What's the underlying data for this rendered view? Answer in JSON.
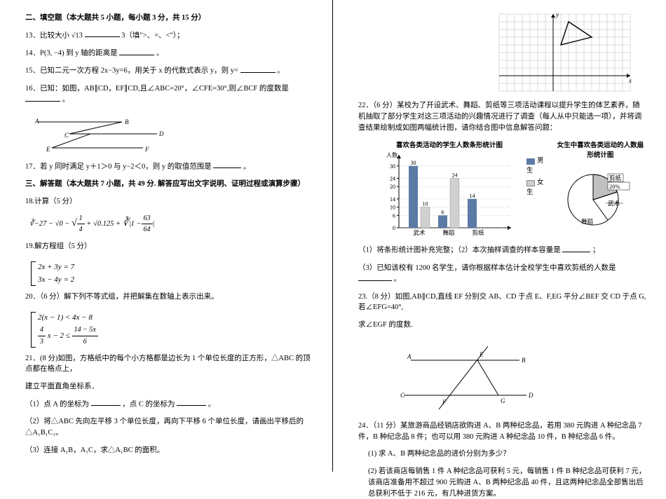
{
  "left": {
    "section2_title": "二、填空题（本大题共 5 小题，每小题 3 分，共 15 分）",
    "q13": "13．比较大小",
    "q13_a": "√13",
    "q13_b": "3（填\">、=、<\"）；",
    "q14": "14．P(3, −4) 到 y 轴的距离是",
    "q14_end": "。",
    "q15": "15．已知二元一次方程 2x−3y=6，用关于 x 的代数式表示 y，则 y=",
    "q15_end": "。",
    "q16": "16．已知：如图，AB∥CD，EF∥CD,且∠ABC=20°，∠CFE=30°,则∠BCF 的度数是",
    "q16_end": "。",
    "fig1": {
      "A": "A",
      "B": "B",
      "C": "C",
      "D": "D",
      "E": "E",
      "F": "F"
    },
    "q17": "17．若 y 同时满足 y＋1＞0 与 y−2＜0，则 y 的取值范围是",
    "q17_end": "。",
    "section3_title": "三、解答题（本大题共 7 小题，共 49 分. 解答应写出文字说明、证明过程或演算步骤）",
    "q18": "18.计算（5 分）",
    "q18_formula_prefix": "∛−27 − √0 −",
    "q18_frac1_num": "1",
    "q18_frac1_den": "4",
    "q18_mid": "+ √0.125 +",
    "q18_frac2_prefix": "|1 −",
    "q18_frac2_num": "63",
    "q18_frac2_den": "64",
    "q18_frac2_suffix": "|",
    "q19": "19.解方程组（5 分）",
    "q19_eq1": "2x + 3y = 7",
    "q19_eq2": "3x − 4y = 2",
    "q20": "20．（6 分）解下列不等式组，并把解集在数轴上表示出来。",
    "q20_eq1": "2(x − 1) < 4x − 8",
    "q20_eq2_lhs_num": "4",
    "q20_eq2_lhs_den": "3",
    "q20_eq2_mid": "x − 2 ≤",
    "q20_eq2_rhs_num": "14 − 5x",
    "q20_eq2_rhs_den": "6",
    "q21": "21．(8 分)如图，方格纸中的每个小方格都是边长为 1 个单位长度的正方形，△ABC 的顶点都在格点上，",
    "q21_b": "建立平面直角坐标系．",
    "q21_1a": "（1）点 A 的坐标为",
    "q21_1b": "，点 C 的坐标为",
    "q21_1c": "。",
    "q21_2": "（2）将△ABC 先向左平移 3 个单位长度，再向下平移 6 个单位长度，请画出平移后的△A₁B₁C₁。",
    "q21_3": "（3）连接 A₁B，A₁C，求△A₁BC 的面积。"
  },
  "right": {
    "grid": {
      "title": "y",
      "xaxis": "x",
      "cell": 11
    },
    "q22": "22．（6 分）某校为了开设武术、舞蹈、剪纸等三项活动课程以提升学生的体艺素养，随机抽取了部分学生对这三项活动的兴趣情况进行了调查（每人从中只能选一项），并将调查结果绘制成如图两幅统计图，请你结合图中信息解答问题：",
    "bar_title": "喜欢各类活动的学生人数条形统计图",
    "bar_ylabel": "人数",
    "pie_title": "女生中喜欢各类运动的人数扇形统计图",
    "bar": {
      "categories": [
        "武术",
        "舞蹈",
        "剪纸"
      ],
      "male": [
        30,
        6,
        14
      ],
      "female": [
        10,
        24,
        null
      ],
      "male_color": "#5b7aa5",
      "female_color": "#d0d0d0",
      "yticks": [
        0,
        6,
        10,
        14,
        20,
        24,
        30
      ],
      "ymax": 34
    },
    "legend_m": "男生",
    "legend_f": "女生",
    "pie": {
      "slices": [
        {
          "label": "武术",
          "pct": 20,
          "color": "#ffffff"
        },
        {
          "label": "剪纸",
          "pct": 20,
          "color": "#c0c0c0"
        },
        {
          "label": "舞蹈",
          "pct": 60,
          "color": "#ffffff"
        }
      ],
      "label_jianzhi": "剪纸",
      "label_jz_pct": "20%",
      "label_wushu": "武术",
      "label_wudao": "舞蹈"
    },
    "q22_1": "（1）将条形统计图补充完整；（2）本次抽样调查的样本容量是",
    "q22_1b": "；",
    "q22_3": "（3）已知该校有 1200 名学生，请你根据样本估计全校学生中喜欢剪纸的人数是",
    "q22_3b": "。",
    "q23": "23.（8 分）如图,AB∥CD,直线 EF 分别交 AB、CD 于点 E、F,EG 平分∠BEF 交 CD 于点 G,若∠EFG=40°,",
    "q23b": "求∠EGF 的度数.",
    "fig3": {
      "A": "A",
      "B": "B",
      "C": "C",
      "D": "D",
      "E": "E",
      "F": "F",
      "G": "G"
    },
    "q24": "24．（11 分）某旅游商品经销店欲购进 A、B 两种纪念品，若用 380 元购进 A 种纪念品 7 件，B 种纪念品 8 件；也可以用 380 元购进 A 种纪念品 10 件，B 种纪念品 6 件。",
    "q24_1": "(1)  求 A、B 两种纪念品的进价分别为多少？",
    "q24_2": "(2)  若该商店每销售 1 件 A 种纪念品可获利 5 元，每销售 1 件 B 种纪念品可获利 7 元，该商店准备用不超过 900 元购进 A、B 两种纪念品 40 件，且这两种纪念品全部售出后总获利不低于 216 元，有几种进货方案。"
  }
}
